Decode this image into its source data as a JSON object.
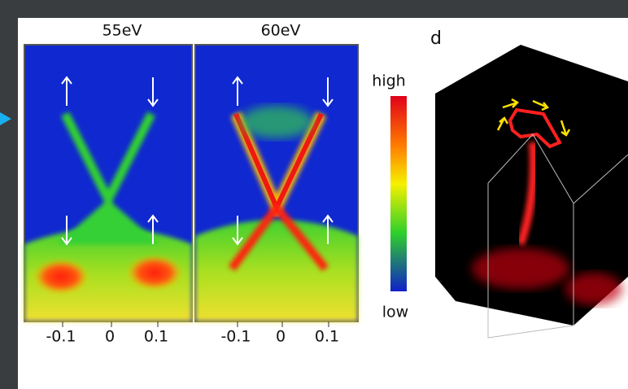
{
  "panels": [
    {
      "title": "55eV",
      "x_ticks": [
        "-0.1",
        "0",
        "0.1"
      ]
    },
    {
      "title": "60eV",
      "x_ticks": [
        "-0.1",
        "0",
        "0.1"
      ]
    }
  ],
  "colorbar": {
    "high": "high",
    "low": "low"
  },
  "panel_d": {
    "label": "d"
  }
}
